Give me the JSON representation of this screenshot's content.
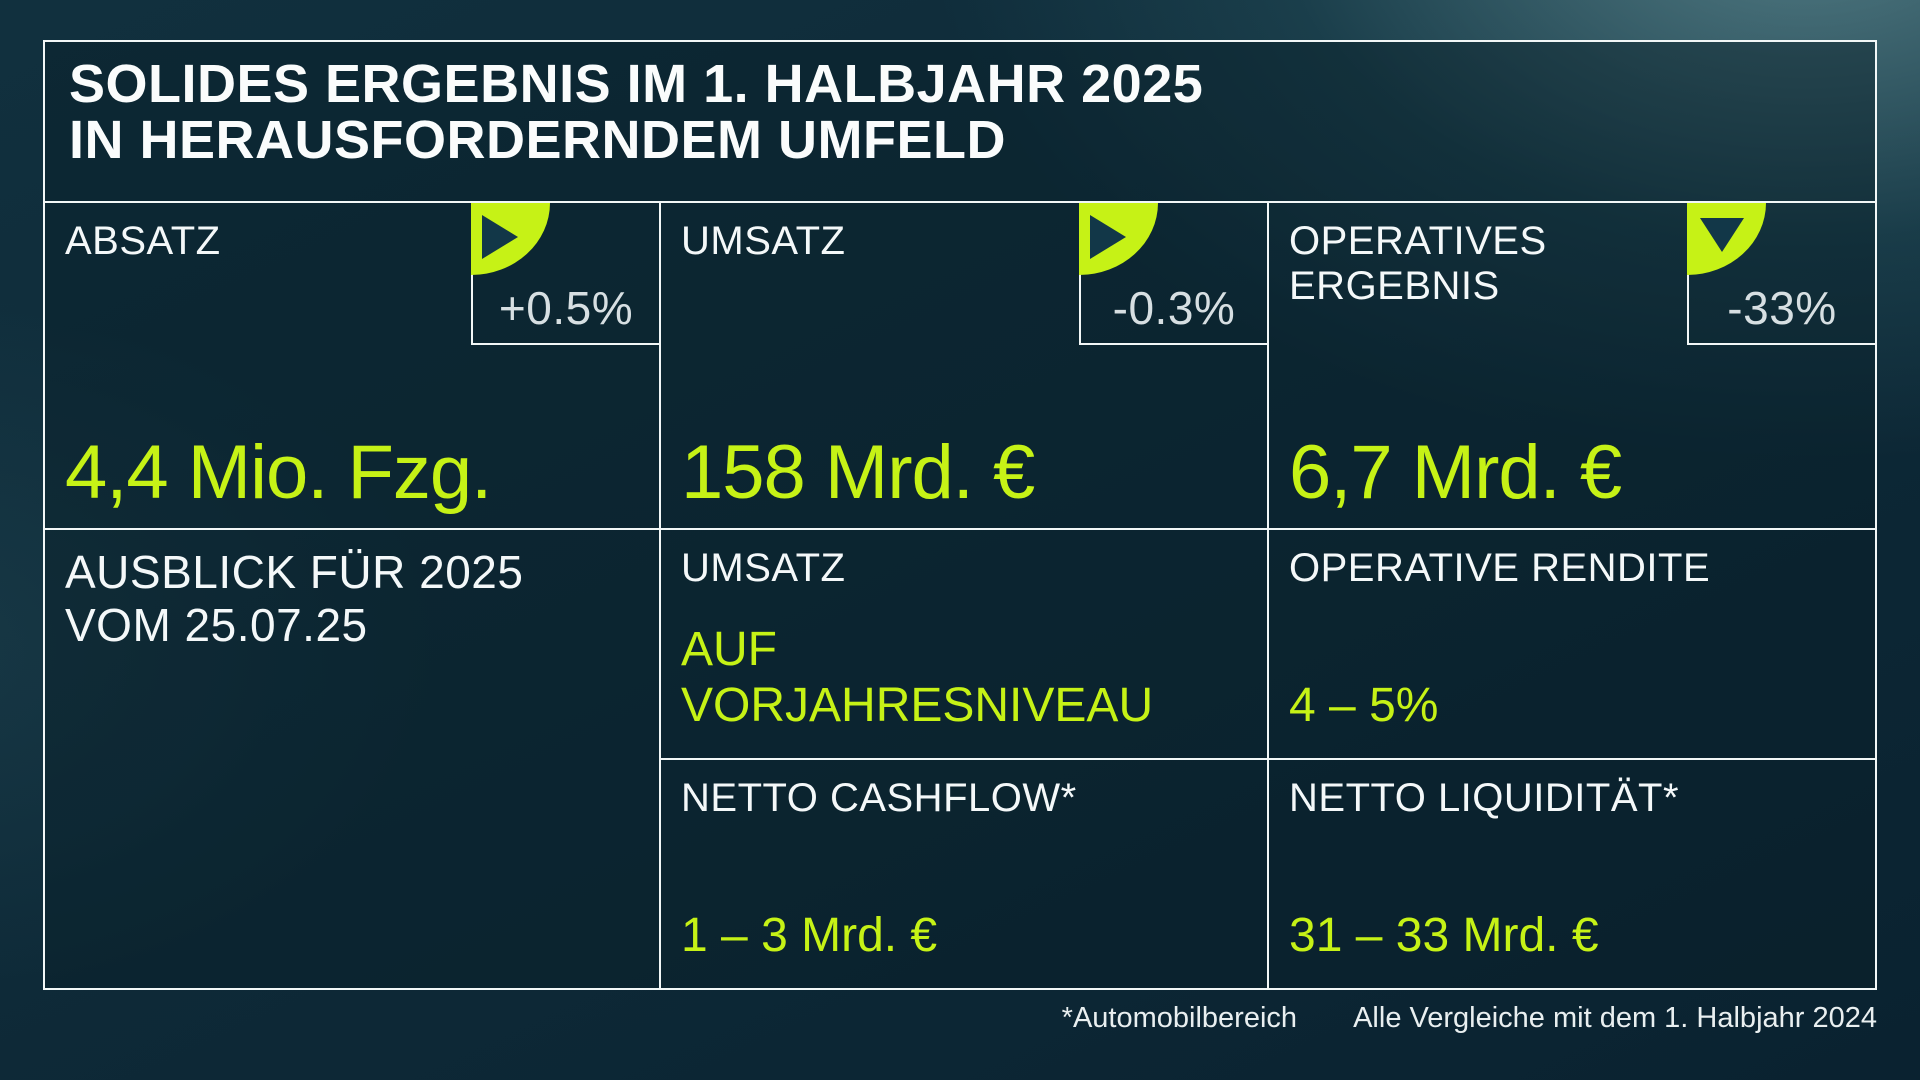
{
  "title": {
    "line1": "SOLIDES ERGEBNIS IM 1. HALBJAHR 2025",
    "line2": "IN HERAUSFORDERNDEM UMFELD"
  },
  "colors": {
    "lime": "#C6F216",
    "triangle": "#123748",
    "background": "#0E2A38",
    "border": "#F2F7F7"
  },
  "kpis": [
    {
      "label": "ABSATZ",
      "delta": "+0.5%",
      "trend": "flat",
      "value": "4,4 Mio. Fzg."
    },
    {
      "label": "UMSATZ",
      "delta": "-0.3%",
      "trend": "flat",
      "value": "158 Mrd. €"
    },
    {
      "label": "OPERATIVES ERGEBNIS",
      "delta": "-33%",
      "trend": "down",
      "value": "6,7 Mrd. €"
    }
  ],
  "outlook": {
    "heading_line1": "AUSBLICK FÜR 2025",
    "heading_line2": "VOM 25.07.25",
    "cells": [
      {
        "label": "UMSATZ",
        "value": "AUF VORJAHRESNIVEAU"
      },
      {
        "label": "OPERATIVE RENDITE",
        "value": "4 – 5%"
      },
      {
        "label": "NETTO CASHFLOW*",
        "value": "1 – 3 Mrd. €"
      },
      {
        "label": "NETTO LIQUIDITÄT*",
        "value": "31 – 33 Mrd. €"
      }
    ]
  },
  "footnotes": {
    "note1": "*Automobilbereich",
    "note2": "Alle Vergleiche mit dem 1. Halbjahr 2024"
  }
}
